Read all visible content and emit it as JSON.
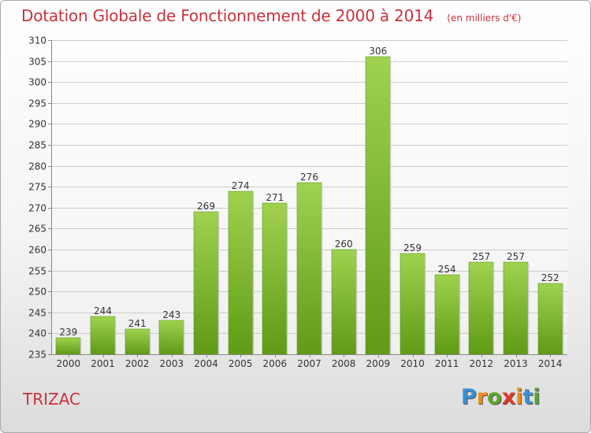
{
  "chart_data": {
    "type": "bar",
    "title": "Dotation Globale de Fonctionnement de 2000 à 2014",
    "subtitle": "(en milliers d'€)",
    "categories": [
      "2000",
      "2001",
      "2002",
      "2003",
      "2004",
      "2005",
      "2006",
      "2007",
      "2008",
      "2009",
      "2010",
      "2011",
      "2012",
      "2013",
      "2014"
    ],
    "values": [
      239,
      244,
      241,
      243,
      269,
      274,
      271,
      276,
      260,
      306,
      259,
      254,
      257,
      257,
      252
    ],
    "ylim": [
      235,
      310
    ],
    "yticks": [
      235,
      240,
      245,
      250,
      255,
      260,
      265,
      270,
      275,
      280,
      285,
      290,
      295,
      300,
      305,
      310
    ],
    "grid": true,
    "bar_color": "#7ab82a",
    "legend": "none"
  },
  "commune": "TRIZAC",
  "logo": {
    "text": "Proxiti",
    "letter_colors": [
      "#3a8fd6",
      "#f08a1c",
      "#5aa62a",
      "#e03a2e",
      "#f08a1c",
      "#3a8fd6",
      "#5aa62a"
    ]
  },
  "colors": {
    "title": "#c8323c",
    "grid": "#cccccc",
    "axis": "#888888"
  }
}
